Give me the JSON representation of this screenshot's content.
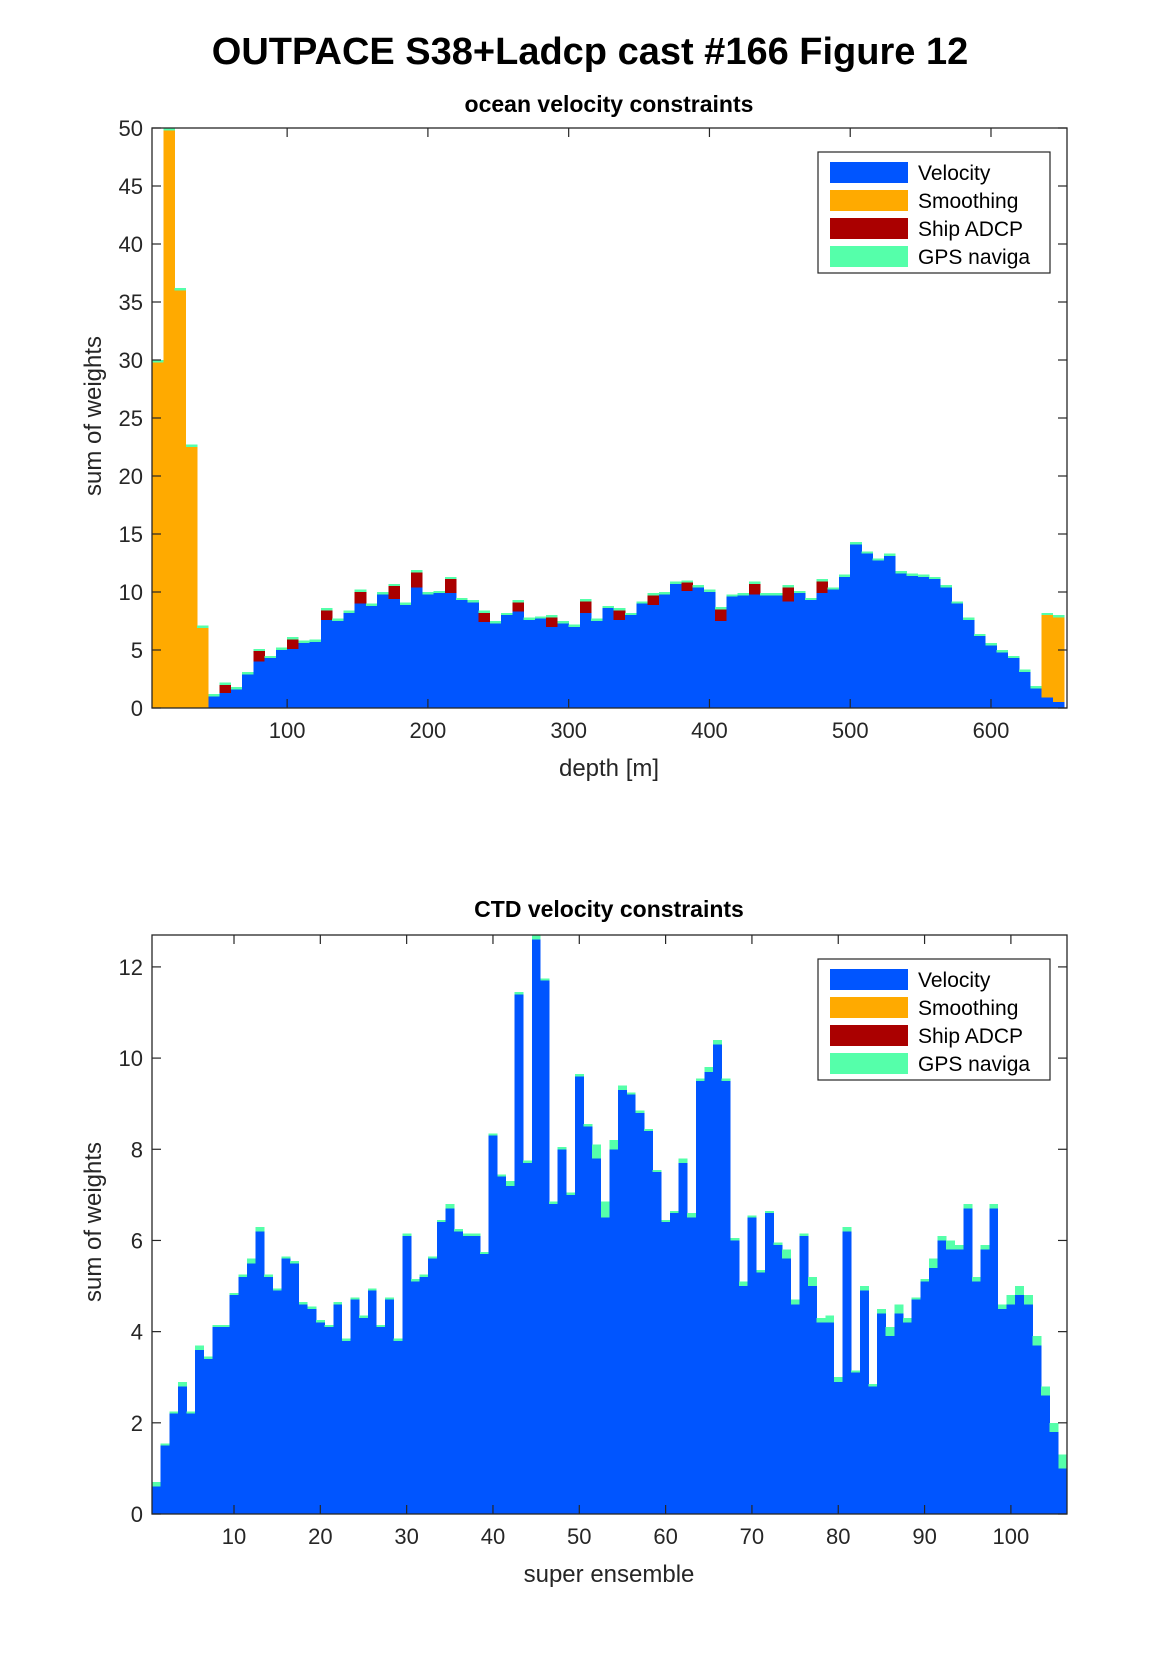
{
  "figure_title": "OUTPACE S38+Ladcp cast #166  Figure 12",
  "colors": {
    "Velocity": "#0055ff",
    "Smoothing": "#ffaa00",
    "Ship ADCP": "#aa0000",
    "GPS naviga": "#55ffaa"
  },
  "chart_data": [
    {
      "type": "bar",
      "stacked": true,
      "title": "ocean velocity constraints",
      "xlabel": "depth [m]",
      "ylabel": "sum of weights",
      "xlim": [
        4,
        654
      ],
      "ylim": [
        0,
        50
      ],
      "bin_width": 8,
      "xticks": [
        100,
        200,
        300,
        400,
        500,
        600
      ],
      "yticks": [
        0,
        5,
        10,
        15,
        20,
        25,
        30,
        35,
        40,
        45,
        50
      ],
      "legend": [
        "Velocity",
        "Smoothing",
        "Ship ADCP",
        "GPS naviga"
      ],
      "legend_position": "top-right",
      "x": [
        8,
        16,
        24,
        32,
        40,
        48,
        56,
        64,
        72,
        80,
        88,
        96,
        104,
        112,
        120,
        128,
        136,
        144,
        152,
        160,
        168,
        176,
        184,
        192,
        200,
        208,
        216,
        224,
        232,
        240,
        248,
        256,
        264,
        272,
        280,
        288,
        296,
        304,
        312,
        320,
        328,
        336,
        344,
        352,
        360,
        368,
        376,
        384,
        392,
        400,
        408,
        416,
        424,
        432,
        440,
        448,
        456,
        464,
        472,
        480,
        488,
        496,
        504,
        512,
        520,
        528,
        536,
        544,
        552,
        560,
        568,
        576,
        584,
        592,
        600,
        608,
        616,
        624,
        632,
        640,
        648
      ],
      "series": [
        {
          "name": "Velocity",
          "values": [
            0,
            0,
            0,
            0,
            0,
            1,
            1.3,
            1.6,
            2.9,
            4,
            4.3,
            5,
            5.1,
            5.6,
            5.7,
            7.6,
            7.5,
            8.2,
            9,
            8.8,
            9.8,
            9.4,
            8.9,
            10.4,
            9.8,
            9.9,
            9.9,
            9.3,
            9.1,
            7.4,
            7.3,
            8,
            8.3,
            7.6,
            7.7,
            7,
            7.3,
            7,
            8.2,
            7.5,
            8.6,
            7.6,
            8,
            9,
            8.9,
            9.8,
            10.7,
            10.1,
            10.4,
            10,
            7.5,
            9.6,
            9.7,
            9.8,
            9.7,
            9.7,
            9.2,
            9.9,
            9.3,
            9.9,
            10.2,
            11.3,
            14.1,
            13.3,
            12.7,
            13.1,
            11.6,
            11.4,
            11.3,
            11.1,
            10.4,
            9,
            7.6,
            6.2,
            5.4,
            4.8,
            4.3,
            3.1,
            1.7,
            0.9,
            0.5
          ]
        },
        {
          "name": "Smoothing",
          "values": [
            29.8,
            49.8,
            36,
            22.5,
            6.9,
            0,
            0,
            0,
            0,
            0,
            0,
            0,
            0,
            0,
            0,
            0,
            0,
            0,
            0,
            0,
            0,
            0,
            0,
            0,
            0,
            0,
            0,
            0,
            0,
            0,
            0,
            0,
            0,
            0,
            0,
            0,
            0,
            0,
            0,
            0,
            0,
            0,
            0,
            0,
            0,
            0,
            0,
            0,
            0,
            0,
            0,
            0,
            0,
            0,
            0,
            0,
            0,
            0,
            0,
            0,
            0,
            0,
            0,
            0,
            0,
            0,
            0,
            0,
            0,
            0,
            0,
            0,
            0,
            0,
            0,
            0,
            0,
            0,
            0,
            7.1,
            7.3
          ]
        },
        {
          "name": "Ship ADCP",
          "values": [
            0,
            0,
            0,
            0,
            0,
            0,
            0.7,
            0,
            0,
            0.9,
            0,
            0,
            0.8,
            0,
            0,
            0.8,
            0,
            0,
            1,
            0,
            0,
            1.1,
            0,
            1.3,
            0,
            0,
            1.2,
            0,
            0,
            0.8,
            0,
            0,
            0.8,
            0,
            0,
            0.8,
            0,
            0,
            1,
            0,
            0,
            0.8,
            0,
            0,
            0.8,
            0,
            0,
            0.7,
            0,
            0,
            1,
            0,
            0,
            0.9,
            0,
            0,
            1.2,
            0,
            0,
            1,
            0,
            0,
            0,
            0,
            0,
            0,
            0,
            0,
            0,
            0,
            0,
            0,
            0,
            0,
            0,
            0,
            0,
            0,
            0,
            0,
            0
          ]
        },
        {
          "name": "GPS naviga",
          "values": [
            0.2,
            0.2,
            0.2,
            0.2,
            0.2,
            0.2,
            0.2,
            0.2,
            0.2,
            0.2,
            0.2,
            0.2,
            0.2,
            0.2,
            0.2,
            0.2,
            0.2,
            0.2,
            0.2,
            0.2,
            0.2,
            0.2,
            0.2,
            0.2,
            0.2,
            0.2,
            0.2,
            0.2,
            0.2,
            0.2,
            0.2,
            0.2,
            0.2,
            0.2,
            0.2,
            0.2,
            0.2,
            0.2,
            0.2,
            0.2,
            0.2,
            0.2,
            0.2,
            0.2,
            0.2,
            0.2,
            0.2,
            0.2,
            0.2,
            0.2,
            0.2,
            0.2,
            0.2,
            0.2,
            0.2,
            0.2,
            0.2,
            0.2,
            0.2,
            0.2,
            0.2,
            0.2,
            0.2,
            0.2,
            0.2,
            0.2,
            0.2,
            0.2,
            0.2,
            0.2,
            0.2,
            0.2,
            0.2,
            0.2,
            0.2,
            0.2,
            0.2,
            0.2,
            0.2,
            0.2,
            0.2
          ]
        }
      ]
    },
    {
      "type": "bar",
      "stacked": true,
      "title": "CTD velocity constraints",
      "xlabel": "super ensemble",
      "ylabel": "sum of weights",
      "xlim": [
        0.5,
        106.5
      ],
      "ylim": [
        0,
        12.7
      ],
      "bin_width": 1,
      "xticks": [
        10,
        20,
        30,
        40,
        50,
        60,
        70,
        80,
        90,
        100
      ],
      "yticks": [
        0,
        2,
        4,
        6,
        8,
        10,
        12
      ],
      "legend": [
        "Velocity",
        "Smoothing",
        "Ship ADCP",
        "GPS naviga"
      ],
      "legend_position": "top-right",
      "x": [
        1,
        2,
        3,
        4,
        5,
        6,
        7,
        8,
        9,
        10,
        11,
        12,
        13,
        14,
        15,
        16,
        17,
        18,
        19,
        20,
        21,
        22,
        23,
        24,
        25,
        26,
        27,
        28,
        29,
        30,
        31,
        32,
        33,
        34,
        35,
        36,
        37,
        38,
        39,
        40,
        41,
        42,
        43,
        44,
        45,
        46,
        47,
        48,
        49,
        50,
        51,
        52,
        53,
        54,
        55,
        56,
        57,
        58,
        59,
        60,
        61,
        62,
        63,
        64,
        65,
        66,
        67,
        68,
        69,
        70,
        71,
        72,
        73,
        74,
        75,
        76,
        77,
        78,
        79,
        80,
        81,
        82,
        83,
        84,
        85,
        86,
        87,
        88,
        89,
        90,
        91,
        92,
        93,
        94,
        95,
        96,
        97,
        98,
        99,
        100,
        101,
        102,
        103,
        104,
        105,
        106
      ],
      "series": [
        {
          "name": "Velocity",
          "values": [
            0.6,
            1.5,
            2.2,
            2.8,
            2.2,
            3.6,
            3.4,
            4.1,
            4.1,
            4.8,
            5.2,
            5.5,
            6.2,
            5.2,
            4.9,
            5.6,
            5.5,
            4.6,
            4.5,
            4.2,
            4.1,
            4.6,
            3.8,
            4.7,
            4.3,
            4.9,
            4.1,
            4.7,
            3.8,
            6.1,
            5.1,
            5.2,
            5.6,
            6.4,
            6.7,
            6.2,
            6.1,
            6.1,
            5.7,
            8.3,
            7.4,
            7.2,
            11.4,
            7.7,
            12.6,
            11.7,
            6.8,
            8,
            7,
            9.6,
            8.5,
            7.8,
            6.5,
            8,
            9.3,
            9.2,
            8.8,
            8.4,
            7.5,
            6.4,
            6.6,
            7.7,
            6.5,
            9.5,
            9.7,
            10.3,
            9.5,
            6,
            5,
            6.5,
            5.3,
            6.6,
            5.9,
            5.6,
            4.6,
            6.1,
            5,
            4.2,
            4.2,
            2.9,
            6.2,
            3.1,
            4.9,
            2.8,
            4.4,
            3.9,
            4.4,
            4.2,
            4.7,
            5.1,
            5.4,
            6,
            5.8,
            5.8,
            6.7,
            5.1,
            5.8,
            6.7,
            4.5,
            4.6,
            4.8,
            4.6,
            3.7,
            2.6,
            1.8,
            1
          ]
        },
        {
          "name": "Smoothing",
          "values": [
            0,
            0,
            0,
            0,
            0,
            0,
            0,
            0,
            0,
            0,
            0,
            0,
            0,
            0,
            0,
            0,
            0,
            0,
            0,
            0,
            0,
            0,
            0,
            0,
            0,
            0,
            0,
            0,
            0,
            0,
            0,
            0,
            0,
            0,
            0,
            0,
            0,
            0,
            0,
            0,
            0,
            0,
            0,
            0,
            0,
            0,
            0,
            0,
            0,
            0,
            0,
            0,
            0,
            0,
            0,
            0,
            0,
            0,
            0,
            0,
            0,
            0,
            0,
            0,
            0,
            0,
            0,
            0,
            0,
            0,
            0,
            0,
            0,
            0,
            0,
            0,
            0,
            0,
            0,
            0,
            0,
            0,
            0,
            0,
            0,
            0,
            0,
            0,
            0,
            0,
            0,
            0,
            0,
            0,
            0,
            0,
            0,
            0,
            0,
            0,
            0,
            0,
            0,
            0,
            0,
            0
          ]
        },
        {
          "name": "Ship ADCP",
          "values": [
            0,
            0,
            0,
            0,
            0,
            0,
            0,
            0,
            0,
            0,
            0,
            0,
            0,
            0,
            0,
            0,
            0,
            0,
            0,
            0,
            0,
            0,
            0,
            0,
            0,
            0,
            0,
            0,
            0,
            0,
            0,
            0,
            0,
            0,
            0,
            0,
            0,
            0,
            0,
            0,
            0,
            0,
            0,
            0,
            0,
            0,
            0,
            0,
            0,
            0,
            0,
            0,
            0,
            0,
            0,
            0,
            0,
            0,
            0,
            0,
            0,
            0,
            0,
            0,
            0,
            0,
            0,
            0,
            0,
            0,
            0,
            0,
            0,
            0,
            0,
            0,
            0,
            0,
            0,
            0,
            0,
            0,
            0,
            0,
            0,
            0,
            0,
            0,
            0,
            0,
            0,
            0,
            0,
            0,
            0,
            0,
            0,
            0,
            0,
            0,
            0,
            0,
            0,
            0,
            0,
            0
          ]
        },
        {
          "name": "GPS naviga",
          "values": [
            0.1,
            0.05,
            0.05,
            0.1,
            0.05,
            0.1,
            0.05,
            0.05,
            0.05,
            0.05,
            0.05,
            0.1,
            0.1,
            0.05,
            0.05,
            0.05,
            0.05,
            0.05,
            0.05,
            0.05,
            0.05,
            0.05,
            0.05,
            0.05,
            0.05,
            0.05,
            0.05,
            0.05,
            0.05,
            0.05,
            0.05,
            0.05,
            0.05,
            0.05,
            0.1,
            0.05,
            0.05,
            0.05,
            0.05,
            0.05,
            0.05,
            0.1,
            0.05,
            0.05,
            0.1,
            0.05,
            0.05,
            0.05,
            0.05,
            0.05,
            0.05,
            0.3,
            0.35,
            0.2,
            0.1,
            0.05,
            0.05,
            0.05,
            0.05,
            0.05,
            0.05,
            0.1,
            0.1,
            0.05,
            0.1,
            0.1,
            0.05,
            0.05,
            0.1,
            0.05,
            0.05,
            0.05,
            0.05,
            0.2,
            0.1,
            0.05,
            0.2,
            0.1,
            0.15,
            0.1,
            0.1,
            0.05,
            0.1,
            0.05,
            0.1,
            0.2,
            0.2,
            0.1,
            0.05,
            0.05,
            0.2,
            0.1,
            0.2,
            0.1,
            0.1,
            0.1,
            0.1,
            0.1,
            0.1,
            0.2,
            0.2,
            0.2,
            0.2,
            0.2,
            0.2,
            0.3
          ]
        }
      ]
    }
  ]
}
